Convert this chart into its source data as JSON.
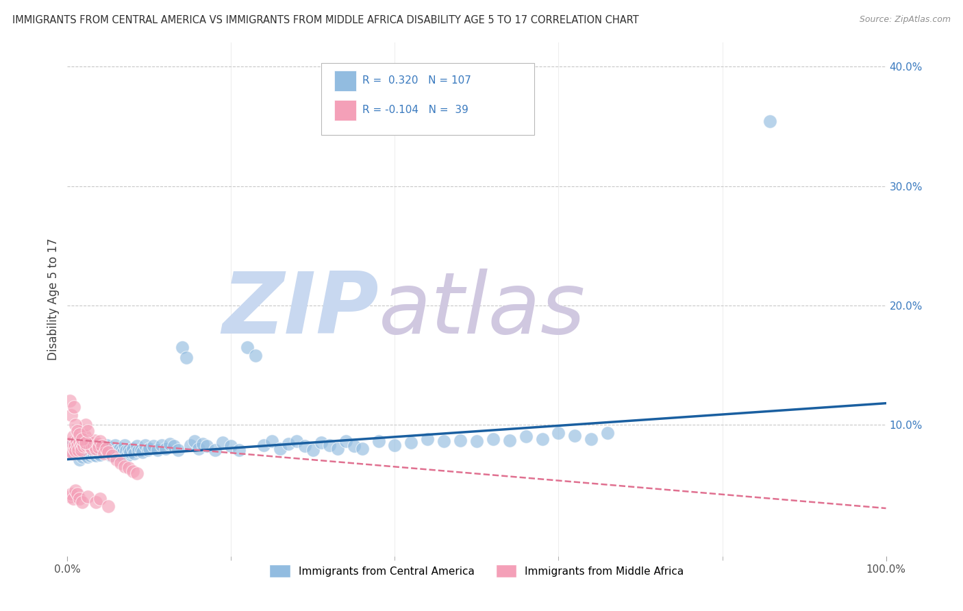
{
  "title": "IMMIGRANTS FROM CENTRAL AMERICA VS IMMIGRANTS FROM MIDDLE AFRICA DISABILITY AGE 5 TO 17 CORRELATION CHART",
  "source": "Source: ZipAtlas.com",
  "ylabel": "Disability Age 5 to 17",
  "xlim": [
    0.0,
    1.0
  ],
  "ylim": [
    -0.01,
    0.42
  ],
  "xtick_labels": [
    "0.0%",
    "100.0%"
  ],
  "xtick_minor_positions": [
    0.2,
    0.4,
    0.6,
    0.8
  ],
  "ytick_labels": [
    "10.0%",
    "20.0%",
    "30.0%",
    "40.0%"
  ],
  "ytick_positions": [
    0.1,
    0.2,
    0.3,
    0.4
  ],
  "legend_label_bottom": [
    "Immigrants from Central America",
    "Immigrants from Middle Africa"
  ],
  "blue_scatter_x": [
    0.005,
    0.008,
    0.01,
    0.012,
    0.013,
    0.015,
    0.016,
    0.017,
    0.018,
    0.019,
    0.02,
    0.021,
    0.022,
    0.023,
    0.025,
    0.026,
    0.027,
    0.028,
    0.029,
    0.03,
    0.031,
    0.032,
    0.033,
    0.035,
    0.036,
    0.037,
    0.038,
    0.04,
    0.041,
    0.043,
    0.045,
    0.046,
    0.048,
    0.05,
    0.052,
    0.053,
    0.055,
    0.057,
    0.058,
    0.06,
    0.062,
    0.064,
    0.065,
    0.067,
    0.068,
    0.07,
    0.072,
    0.073,
    0.075,
    0.077,
    0.08,
    0.082,
    0.085,
    0.087,
    0.09,
    0.092,
    0.095,
    0.098,
    0.1,
    0.105,
    0.11,
    0.115,
    0.12,
    0.125,
    0.13,
    0.135,
    0.14,
    0.145,
    0.15,
    0.155,
    0.16,
    0.165,
    0.17,
    0.18,
    0.19,
    0.2,
    0.21,
    0.22,
    0.23,
    0.24,
    0.25,
    0.26,
    0.27,
    0.28,
    0.29,
    0.3,
    0.31,
    0.32,
    0.33,
    0.34,
    0.35,
    0.36,
    0.38,
    0.4,
    0.42,
    0.44,
    0.46,
    0.48,
    0.5,
    0.52,
    0.54,
    0.56,
    0.58,
    0.6,
    0.62,
    0.64,
    0.66
  ],
  "blue_scatter_y": [
    0.082,
    0.076,
    0.079,
    0.083,
    0.077,
    0.071,
    0.075,
    0.08,
    0.073,
    0.078,
    0.086,
    0.075,
    0.079,
    0.083,
    0.073,
    0.077,
    0.081,
    0.074,
    0.079,
    0.076,
    0.082,
    0.075,
    0.08,
    0.074,
    0.078,
    0.076,
    0.082,
    0.075,
    0.079,
    0.078,
    0.08,
    0.077,
    0.083,
    0.076,
    0.08,
    0.074,
    0.079,
    0.077,
    0.083,
    0.078,
    0.076,
    0.08,
    0.075,
    0.079,
    0.077,
    0.083,
    0.078,
    0.074,
    0.079,
    0.077,
    0.08,
    0.076,
    0.082,
    0.078,
    0.079,
    0.077,
    0.083,
    0.079,
    0.08,
    0.082,
    0.079,
    0.083,
    0.08,
    0.084,
    0.082,
    0.079,
    0.165,
    0.156,
    0.083,
    0.086,
    0.08,
    0.084,
    0.082,
    0.079,
    0.085,
    0.082,
    0.079,
    0.165,
    0.158,
    0.083,
    0.086,
    0.08,
    0.084,
    0.086,
    0.082,
    0.079,
    0.085,
    0.083,
    0.08,
    0.086,
    0.082,
    0.08,
    0.086,
    0.083,
    0.085,
    0.088,
    0.086,
    0.087,
    0.086,
    0.088,
    0.087,
    0.09,
    0.088,
    0.093,
    0.091,
    0.088,
    0.093
  ],
  "blue_outlier_x": [
    0.858
  ],
  "blue_outlier_y": [
    0.354
  ],
  "pink_scatter_x": [
    0.003,
    0.005,
    0.006,
    0.007,
    0.008,
    0.009,
    0.01,
    0.011,
    0.012,
    0.013,
    0.015,
    0.016,
    0.017,
    0.018,
    0.02,
    0.021,
    0.022,
    0.023,
    0.025,
    0.027,
    0.028,
    0.03,
    0.032,
    0.033,
    0.035,
    0.037,
    0.038,
    0.04,
    0.042,
    0.045,
    0.047,
    0.05,
    0.055,
    0.06,
    0.065,
    0.07,
    0.075,
    0.08,
    0.085
  ],
  "pink_scatter_y": [
    0.078,
    0.085,
    0.076,
    0.09,
    0.08,
    0.083,
    0.078,
    0.086,
    0.082,
    0.079,
    0.086,
    0.082,
    0.079,
    0.085,
    0.082,
    0.091,
    0.1,
    0.083,
    0.086,
    0.082,
    0.085,
    0.08,
    0.083,
    0.087,
    0.08,
    0.084,
    0.081,
    0.086,
    0.082,
    0.076,
    0.08,
    0.077,
    0.074,
    0.071,
    0.068,
    0.065,
    0.064,
    0.061,
    0.059
  ],
  "pink_low_x": [
    0.003,
    0.005,
    0.007,
    0.01,
    0.012,
    0.015,
    0.018,
    0.025,
    0.035,
    0.04,
    0.05
  ],
  "pink_low_y": [
    0.04,
    0.042,
    0.038,
    0.045,
    0.042,
    0.038,
    0.035,
    0.04,
    0.035,
    0.038,
    0.032
  ],
  "pink_high_x": [
    0.003,
    0.005,
    0.008,
    0.01,
    0.012,
    0.015,
    0.018,
    0.022,
    0.025
  ],
  "pink_high_y": [
    0.12,
    0.108,
    0.115,
    0.1,
    0.095,
    0.092,
    0.088,
    0.085,
    0.095
  ],
  "blue_line_x": [
    0.0,
    1.0
  ],
  "blue_line_y": [
    0.071,
    0.118
  ],
  "pink_line_x": [
    0.0,
    1.0
  ],
  "pink_line_y": [
    0.088,
    0.03
  ],
  "blue_color": "#92bce0",
  "pink_color": "#f4a0b8",
  "blue_line_color": "#1a5fa0",
  "pink_line_color": "#e07090",
  "background_color": "#ffffff",
  "grid_color": "#c8c8c8",
  "title_color": "#303030",
  "wm_zip_color": "#c8d8f0",
  "wm_atlas_color": "#d0c8e0"
}
